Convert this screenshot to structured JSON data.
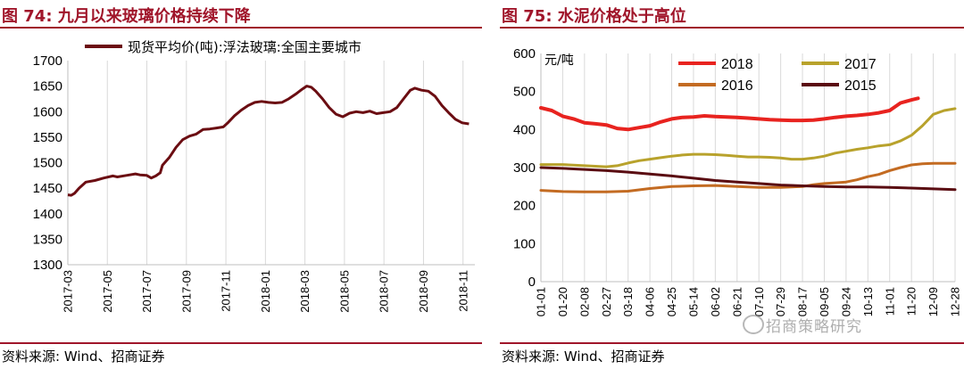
{
  "left": {
    "figure_title": "图 74:  九月以来玻璃价格持续下降",
    "source": "资料来源:  Wind、招商证券",
    "chart_data": {
      "type": "line",
      "title": "",
      "xlabel": "",
      "ylabel": "",
      "ylim": [
        1300,
        1700
      ],
      "yticks": [
        "1700",
        "1650",
        "1600",
        "1550",
        "1500",
        "1450",
        "1400",
        "1350",
        "1300"
      ],
      "xticks": [
        "2017-03",
        "2017-05",
        "2017-07",
        "2017-09",
        "2017-11",
        "2018-01",
        "2018-03",
        "2018-05",
        "2018-07",
        "2018-09",
        "2018-11"
      ],
      "legend_position": "top",
      "grid": "vertical",
      "series": [
        {
          "name": "现货平均价(吨):浮法玻璃:全国主要城市",
          "color": "#6b0d12",
          "points": [
            [
              0.0,
              1437
            ],
            [
              0.15,
              1436
            ],
            [
              0.3,
              1440
            ],
            [
              0.5,
              1450
            ],
            [
              0.8,
              1462
            ],
            [
              1.2,
              1465
            ],
            [
              1.6,
              1470
            ],
            [
              2.0,
              1474
            ],
            [
              2.2,
              1472
            ],
            [
              2.6,
              1475
            ],
            [
              3.0,
              1478
            ],
            [
              3.2,
              1476
            ],
            [
              3.5,
              1475
            ],
            [
              3.7,
              1470
            ],
            [
              3.9,
              1474
            ],
            [
              4.1,
              1480
            ],
            [
              4.2,
              1495
            ],
            [
              4.5,
              1510
            ],
            [
              4.8,
              1530
            ],
            [
              5.1,
              1545
            ],
            [
              5.4,
              1552
            ],
            [
              5.7,
              1556
            ],
            [
              6.0,
              1565
            ],
            [
              6.3,
              1566
            ],
            [
              6.6,
              1568
            ],
            [
              6.9,
              1570
            ],
            [
              7.1,
              1578
            ],
            [
              7.4,
              1592
            ],
            [
              7.7,
              1603
            ],
            [
              8.0,
              1612
            ],
            [
              8.3,
              1618
            ],
            [
              8.6,
              1620
            ],
            [
              8.9,
              1618
            ],
            [
              9.2,
              1617
            ],
            [
              9.5,
              1618
            ],
            [
              9.8,
              1625
            ],
            [
              10.1,
              1634
            ],
            [
              10.4,
              1644
            ],
            [
              10.6,
              1650
            ],
            [
              10.8,
              1648
            ],
            [
              11.0,
              1640
            ],
            [
              11.3,
              1625
            ],
            [
              11.6,
              1608
            ],
            [
              11.9,
              1595
            ],
            [
              12.2,
              1590
            ],
            [
              12.5,
              1597
            ],
            [
              12.8,
              1600
            ],
            [
              13.1,
              1598
            ],
            [
              13.4,
              1601
            ],
            [
              13.7,
              1596
            ],
            [
              14.0,
              1598
            ],
            [
              14.3,
              1600
            ],
            [
              14.6,
              1608
            ],
            [
              14.9,
              1625
            ],
            [
              15.2,
              1642
            ],
            [
              15.4,
              1646
            ],
            [
              15.7,
              1642
            ],
            [
              16.0,
              1640
            ],
            [
              16.3,
              1630
            ],
            [
              16.6,
              1612
            ],
            [
              16.9,
              1598
            ],
            [
              17.2,
              1585
            ],
            [
              17.5,
              1578
            ],
            [
              17.8,
              1576
            ]
          ]
        }
      ]
    }
  },
  "right": {
    "figure_title": "图 75:  水泥价格处于高位",
    "source": "资料来源:  Wind、招商证券",
    "watermark": "招商策略研究",
    "chart_data": {
      "type": "line",
      "title": "",
      "xlabel": "",
      "ylabel": "元/吨",
      "ylim": [
        0,
        600
      ],
      "yticks": [
        "600",
        "500",
        "400",
        "300",
        "200",
        "100",
        "0"
      ],
      "xticks": [
        "01-01",
        "01-20",
        "02-08",
        "02-27",
        "03-18",
        "04-06",
        "04-25",
        "05-14",
        "06-02",
        "06-21",
        "07-10",
        "07-29",
        "08-17",
        "09-05",
        "09-24",
        "10-13",
        "11-01",
        "11-20",
        "12-09",
        "12-28"
      ],
      "legend_position": "top",
      "grid": "vertical",
      "series": [
        {
          "name": "2018",
          "color": "#e8231f",
          "width": 4,
          "points": [
            [
              0,
              457
            ],
            [
              0.5,
              450
            ],
            [
              1.0,
              435
            ],
            [
              1.5,
              428
            ],
            [
              2.0,
              418
            ],
            [
              2.5,
              415
            ],
            [
              3.0,
              412
            ],
            [
              3.5,
              403
            ],
            [
              4.0,
              400
            ],
            [
              4.5,
              405
            ],
            [
              5.0,
              410
            ],
            [
              5.5,
              420
            ],
            [
              6.0,
              428
            ],
            [
              6.5,
              432
            ],
            [
              7.0,
              433
            ],
            [
              7.5,
              436
            ],
            [
              8.0,
              434
            ],
            [
              8.5,
              433
            ],
            [
              9.0,
              432
            ],
            [
              9.5,
              430
            ],
            [
              10.0,
              428
            ],
            [
              10.5,
              426
            ],
            [
              11.0,
              425
            ],
            [
              11.5,
              424
            ],
            [
              12.0,
              424
            ],
            [
              12.5,
              425
            ],
            [
              13.0,
              428
            ],
            [
              13.5,
              432
            ],
            [
              14.0,
              435
            ],
            [
              14.5,
              437
            ],
            [
              15.0,
              440
            ],
            [
              15.5,
              444
            ],
            [
              16.0,
              450
            ],
            [
              16.5,
              470
            ],
            [
              17.0,
              478
            ],
            [
              17.3,
              482
            ]
          ]
        },
        {
          "name": "2017",
          "color": "#b8a22c",
          "width": 3,
          "points": [
            [
              0,
              308
            ],
            [
              1.0,
              308
            ],
            [
              2.0,
              305
            ],
            [
              3.0,
              302
            ],
            [
              3.5,
              305
            ],
            [
              4.0,
              312
            ],
            [
              4.5,
              318
            ],
            [
              5.0,
              322
            ],
            [
              5.5,
              326
            ],
            [
              6.0,
              330
            ],
            [
              6.5,
              333
            ],
            [
              7.0,
              335
            ],
            [
              7.5,
              335
            ],
            [
              8.0,
              334
            ],
            [
              8.5,
              332
            ],
            [
              9.0,
              330
            ],
            [
              9.5,
              328
            ],
            [
              10.0,
              328
            ],
            [
              10.5,
              327
            ],
            [
              11.0,
              325
            ],
            [
              11.5,
              322
            ],
            [
              12.0,
              322
            ],
            [
              12.5,
              325
            ],
            [
              13.0,
              330
            ],
            [
              13.5,
              338
            ],
            [
              14.0,
              343
            ],
            [
              14.5,
              348
            ],
            [
              15.0,
              352
            ],
            [
              15.5,
              357
            ],
            [
              16.0,
              360
            ],
            [
              16.5,
              370
            ],
            [
              17.0,
              385
            ],
            [
              17.5,
              410
            ],
            [
              18.0,
              440
            ],
            [
              18.5,
              450
            ],
            [
              19.0,
              455
            ]
          ]
        },
        {
          "name": "2016",
          "color": "#c36b22",
          "width": 3,
          "points": [
            [
              0,
              240
            ],
            [
              1.0,
              237
            ],
            [
              2.0,
              236
            ],
            [
              3.0,
              236
            ],
            [
              4.0,
              238
            ],
            [
              5.0,
              245
            ],
            [
              6.0,
              250
            ],
            [
              7.0,
              252
            ],
            [
              8.0,
              253
            ],
            [
              9.0,
              250
            ],
            [
              10.0,
              248
            ],
            [
              11.0,
              248
            ],
            [
              12.0,
              250
            ],
            [
              12.5,
              255
            ],
            [
              13.0,
              258
            ],
            [
              13.5,
              260
            ],
            [
              14.0,
              262
            ],
            [
              14.5,
              268
            ],
            [
              15.0,
              276
            ],
            [
              15.5,
              282
            ],
            [
              16.0,
              292
            ],
            [
              16.5,
              300
            ],
            [
              17.0,
              307
            ],
            [
              17.5,
              310
            ],
            [
              18.0,
              311
            ],
            [
              18.5,
              311
            ],
            [
              19.0,
              311
            ]
          ]
        },
        {
          "name": "2015",
          "color": "#5a0c12",
          "width": 3,
          "points": [
            [
              0,
              300
            ],
            [
              1.0,
              298
            ],
            [
              2.0,
              295
            ],
            [
              3.0,
              292
            ],
            [
              4.0,
              288
            ],
            [
              5.0,
              283
            ],
            [
              6.0,
              278
            ],
            [
              7.0,
              272
            ],
            [
              8.0,
              266
            ],
            [
              9.0,
              262
            ],
            [
              10.0,
              258
            ],
            [
              11.0,
              254
            ],
            [
              12.0,
              252
            ],
            [
              13.0,
              250
            ],
            [
              14.0,
              249
            ],
            [
              15.0,
              249
            ],
            [
              16.0,
              248
            ],
            [
              17.0,
              246
            ],
            [
              18.0,
              244
            ],
            [
              19.0,
              242
            ]
          ]
        }
      ]
    }
  }
}
